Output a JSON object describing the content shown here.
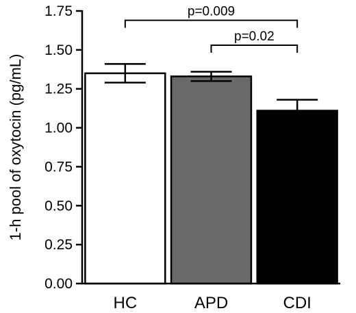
{
  "chart_data": {
    "type": "bar",
    "categories": [
      "HC",
      "APD",
      "CDI"
    ],
    "values": [
      1.35,
      1.33,
      1.11
    ],
    "errors": [
      0.06,
      0.03,
      0.07
    ],
    "colors": [
      "#ffffff",
      "#696969",
      "#000000"
    ],
    "ylabel": "1-h pool of oxytocin (pg/mL)",
    "ylim": [
      0,
      1.75
    ],
    "yticks": [
      "0.00",
      "0.25",
      "0.50",
      "0.75",
      "1.00",
      "1.25",
      "1.50",
      "1.75"
    ],
    "grid": false,
    "annotations": [
      {
        "from": 0,
        "to": 2,
        "label": "p=0.009",
        "y": 1.69
      },
      {
        "from": 1,
        "to": 2,
        "label": "p=0.02",
        "y": 1.53
      }
    ]
  }
}
